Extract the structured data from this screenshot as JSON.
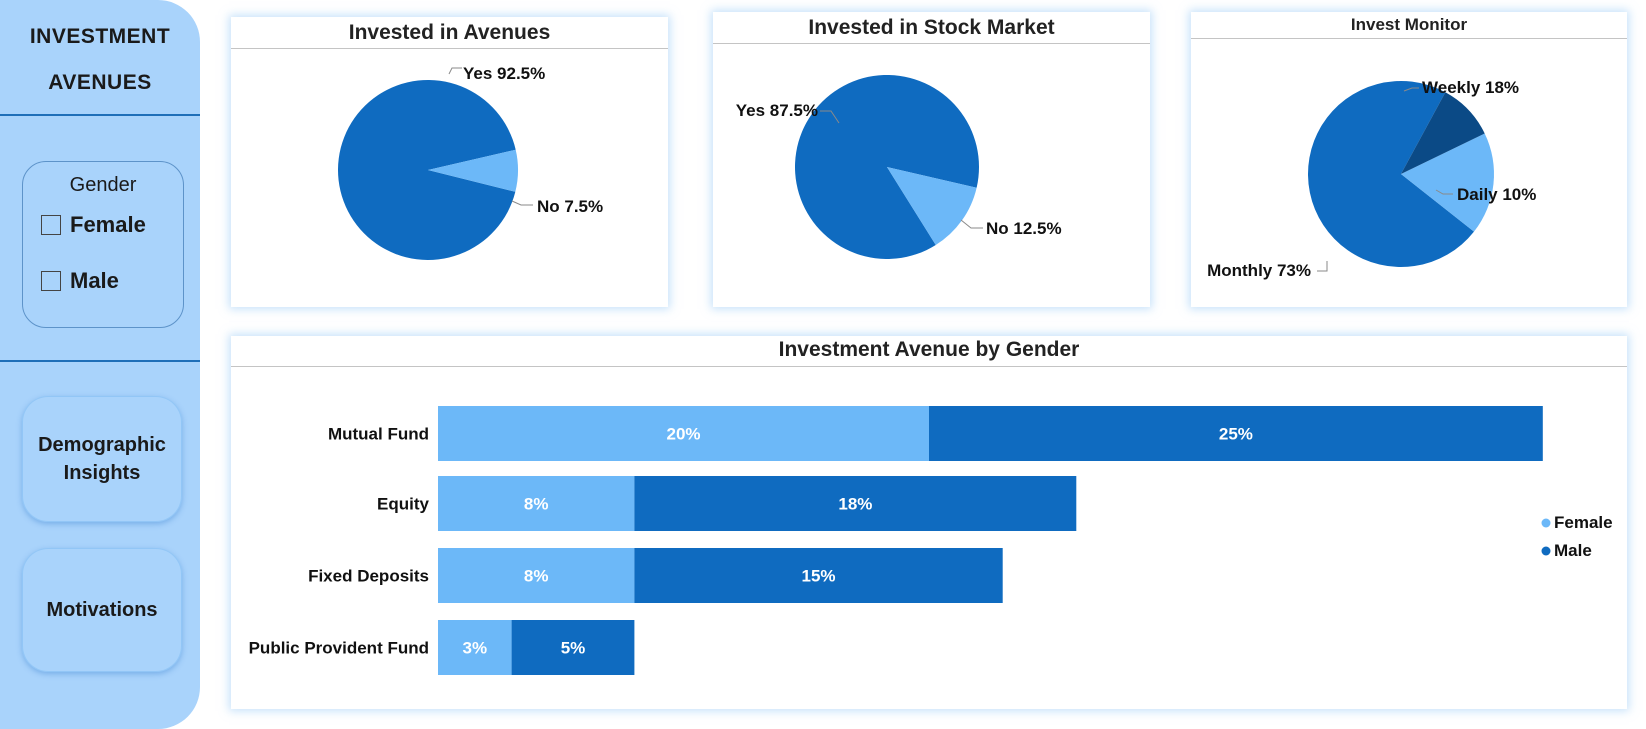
{
  "sidebar": {
    "title_line1": "INVESTMENT",
    "title_line2": "AVENUES",
    "gender_filter": {
      "title": "Gender",
      "options": [
        {
          "label": "Female",
          "checked": false
        },
        {
          "label": "Male",
          "checked": false
        }
      ]
    },
    "nav": [
      {
        "label_line1": "Demographic",
        "label_line2": "Insights"
      },
      {
        "label": "Motivations"
      }
    ]
  },
  "colors": {
    "light": "#6cb8f8",
    "mid": "#0f6bc0",
    "dark": "#0b4a86",
    "sidebar": "#a9d3fb"
  },
  "chart_data": [
    {
      "type": "pie",
      "title": "Invested in Avenues",
      "slices": [
        {
          "label": "Yes",
          "value": 92.5,
          "display": "Yes 92.5%",
          "color": "#0f6bc0"
        },
        {
          "label": "No",
          "value": 7.5,
          "display": "No 7.5%",
          "color": "#6cb8f8"
        }
      ]
    },
    {
      "type": "pie",
      "title": "Invested in Stock Market",
      "slices": [
        {
          "label": "Yes",
          "value": 87.5,
          "display": "Yes 87.5%",
          "color": "#0f6bc0"
        },
        {
          "label": "No",
          "value": 12.5,
          "display": "No 12.5%",
          "color": "#6cb8f8"
        }
      ]
    },
    {
      "type": "pie",
      "title": "Invest Monitor",
      "slices": [
        {
          "label": "Monthly",
          "value": 73,
          "display": "Monthly 73%",
          "color": "#0f6bc0"
        },
        {
          "label": "Weekly",
          "value": 18,
          "display": "Weekly 18%",
          "color": "#6cb8f8"
        },
        {
          "label": "Daily",
          "value": 10,
          "display": "Daily 10%",
          "color": "#0b4a86"
        }
      ]
    },
    {
      "type": "bar",
      "orientation": "horizontal",
      "stacked": true,
      "title": "Investment Avenue by Gender",
      "categories": [
        "Mutual Fund",
        "Equity",
        "Fixed Deposits",
        "Public Provident Fund"
      ],
      "series": [
        {
          "name": "Female",
          "values": [
            20,
            8,
            8,
            3
          ],
          "labels": [
            "20%",
            "8%",
            "8%",
            "3%"
          ],
          "color": "#6cb8f8"
        },
        {
          "name": "Male",
          "values": [
            25,
            18,
            15,
            5
          ],
          "labels": [
            "25%",
            "18%",
            "15%",
            "5%"
          ],
          "color": "#0f6bc0"
        }
      ],
      "legend": "right"
    }
  ]
}
